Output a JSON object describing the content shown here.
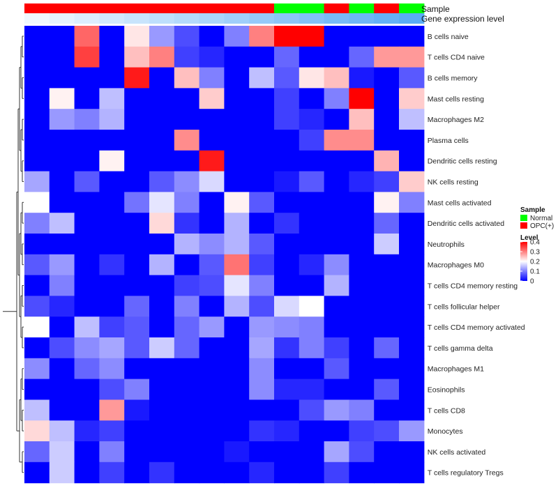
{
  "chart_data": {
    "type": "heatmap",
    "title": "",
    "columns": 16,
    "rows": [
      "B cells naive",
      "T cells CD4 naive",
      "B cells memory",
      "Mast cells resting",
      "Macrophages M2",
      "Plasma cells",
      "Dendritic cells resting",
      "NK cells resting",
      "Mast cells activated",
      "Dendritic cells activated",
      "Neutrophils",
      "Macrophages M0",
      "T cells CD4 memory resting",
      "T cells follicular helper",
      "T cells CD4 memory activated",
      "T cells gamma delta",
      "Macrophages M1",
      "Eosinophils",
      "T cells CD8",
      "Monocytes",
      "NK cells activated",
      "T cells regulatory  Tregs"
    ],
    "values": [
      [
        0,
        0,
        0.32,
        0,
        0.22,
        0.12,
        0.06,
        0,
        0.1,
        0.3,
        0.4,
        0.4,
        0,
        0,
        0,
        0
      ],
      [
        0,
        0,
        0.35,
        0,
        0.25,
        0.3,
        0.05,
        0.03,
        0,
        0,
        0.08,
        0,
        0,
        0.08,
        0.28,
        0.28
      ],
      [
        0,
        0,
        0,
        0,
        0.38,
        0,
        0.25,
        0.1,
        0,
        0.15,
        0.07,
        0.22,
        0.25,
        0.02,
        0,
        0.07
      ],
      [
        0,
        0.21,
        0,
        0.15,
        0,
        0,
        0,
        0.24,
        0,
        0,
        0.05,
        0,
        0.1,
        0.4,
        0,
        0.24
      ],
      [
        0,
        0.12,
        0.1,
        0.14,
        0,
        0,
        0,
        0,
        0,
        0,
        0.05,
        0.03,
        0,
        0.25,
        0,
        0.15
      ],
      [
        0,
        0,
        0,
        0,
        0,
        0,
        0.29,
        0,
        0,
        0,
        0,
        0.05,
        0.29,
        0.29,
        0,
        0
      ],
      [
        0,
        0,
        0,
        0.21,
        0,
        0,
        0,
        0.38,
        0,
        0,
        0,
        0,
        0,
        0,
        0.26,
        0
      ],
      [
        0.13,
        0,
        0.07,
        0,
        0,
        0.07,
        0.11,
        0.17,
        0,
        0,
        0.02,
        0.07,
        0,
        0.03,
        0.05,
        0.24
      ],
      [
        0.2,
        0,
        0,
        0,
        0.09,
        0.18,
        0.1,
        0,
        0.21,
        0.07,
        0,
        0,
        0,
        0,
        0.21,
        0.1
      ],
      [
        0.1,
        0.15,
        0,
        0,
        0,
        0.23,
        0.04,
        0,
        0.14,
        0,
        0.04,
        0,
        0,
        0,
        0.08,
        0
      ],
      [
        0,
        0,
        0,
        0,
        0,
        0,
        0.14,
        0.11,
        0.14,
        0.07,
        0,
        0,
        0,
        0,
        0.16,
        0
      ],
      [
        0.07,
        0.12,
        0,
        0.04,
        0,
        0.14,
        0,
        0.07,
        0.31,
        0.05,
        0,
        0.03,
        0.11,
        0,
        0,
        0
      ],
      [
        0,
        0.1,
        0,
        0,
        0,
        0,
        0.05,
        0.06,
        0.18,
        0.1,
        0,
        0,
        0.14,
        0,
        0,
        0
      ],
      [
        0.06,
        0.03,
        0,
        0,
        0.08,
        0,
        0.1,
        0,
        0.14,
        0.06,
        0.17,
        0.2,
        0,
        0,
        0,
        0
      ],
      [
        0.2,
        0,
        0.15,
        0.05,
        0.07,
        0,
        0.08,
        0.12,
        0,
        0.12,
        0.11,
        0.1,
        0,
        0,
        0,
        0
      ],
      [
        0,
        0.06,
        0.11,
        0.13,
        0.07,
        0.16,
        0.08,
        0,
        0,
        0.13,
        0.04,
        0.1,
        0.05,
        0,
        0.08,
        0
      ],
      [
        0.11,
        0,
        0.08,
        0.11,
        0,
        0,
        0,
        0,
        0,
        0.11,
        0,
        0,
        0.07,
        0,
        0,
        0
      ],
      [
        0,
        0,
        0,
        0.06,
        0.1,
        0,
        0,
        0,
        0,
        0.11,
        0.03,
        0.03,
        0,
        0,
        0.07,
        0
      ],
      [
        0.15,
        0,
        0,
        0.28,
        0.02,
        0,
        0,
        0,
        0,
        0,
        0,
        0.06,
        0.12,
        0.1,
        0,
        0
      ],
      [
        0.23,
        0.15,
        0.03,
        0.05,
        0,
        0,
        0,
        0,
        0,
        0.04,
        0.03,
        0,
        0,
        0.05,
        0.06,
        0.12
      ],
      [
        0.08,
        0.16,
        0,
        0.1,
        0,
        0,
        0,
        0,
        0.02,
        0,
        0,
        0,
        0.13,
        0.06,
        0,
        0
      ],
      [
        0,
        0.16,
        0,
        0.05,
        0,
        0.04,
        0,
        0,
        0,
        0.03,
        0,
        0,
        0.05,
        0,
        0,
        0
      ]
    ],
    "annotations": {
      "Sample": [
        "OPC(+)",
        "OPC(+)",
        "OPC(+)",
        "OPC(+)",
        "OPC(+)",
        "OPC(+)",
        "OPC(+)",
        "OPC(+)",
        "OPC(+)",
        "OPC(+)",
        "Normal",
        "Normal",
        "OPC(+)",
        "Normal",
        "OPC(+)",
        "Normal"
      ],
      "Gene expression level": [
        0.07,
        0.1,
        0.13,
        0.16,
        0.19,
        0.22,
        0.25,
        0.28,
        0.31,
        0.34,
        0.37,
        0.4,
        0.43,
        0.46,
        0.49,
        0.52
      ]
    },
    "annotation_labels": [
      "Sample",
      "Gene expression level"
    ],
    "legend": {
      "sample_title": "Sample",
      "sample_entries": [
        {
          "label": "Normal",
          "color": "#00ff00"
        },
        {
          "label": "OPC(+)",
          "color": "#ff0000"
        }
      ],
      "level_title": "Level",
      "level_ticks": [
        "0.4",
        "0.3",
        "0.2",
        "0.1",
        "0"
      ],
      "level_tick_values": [
        0.4,
        0.3,
        0.2,
        0.1,
        0
      ],
      "placement": "right"
    },
    "color_scale": {
      "low": "#0000ff",
      "mid": "#ffffff",
      "high": "#ff0000",
      "min": 0,
      "mid_value": 0.2,
      "max": 0.4
    }
  }
}
